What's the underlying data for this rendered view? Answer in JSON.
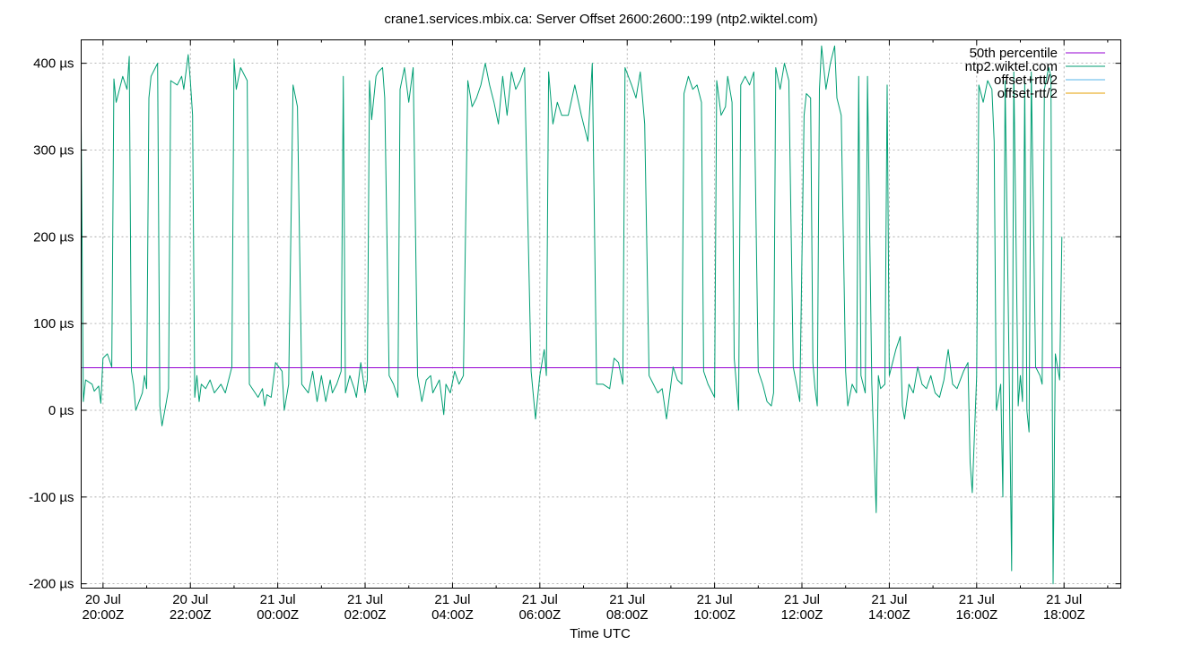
{
  "chart_data": {
    "type": "line",
    "title": "crane1.services.mbix.ca: Server Offset 2600:2600::199 (ntp2.wiktel.com)",
    "xlabel": "Time UTC",
    "ylabel": "",
    "y_unit": "µs",
    "ylim": [
      -205,
      427
    ],
    "xlim_hours": [
      19.5,
      43.3
    ],
    "grid": true,
    "legend_position": "top-right",
    "y_ticks": [
      -200,
      -100,
      0,
      100,
      200,
      300,
      400
    ],
    "y_tick_labels": [
      "-200 µs",
      "-100 µs",
      "0 µs",
      "100 µs",
      "200 µs",
      "300 µs",
      "400 µs"
    ],
    "x_ticks": [
      {
        "hour": 20,
        "date": "20 Jul",
        "time": "20:00Z"
      },
      {
        "hour": 22,
        "date": "20 Jul",
        "time": "22:00Z"
      },
      {
        "hour": 24,
        "date": "21 Jul",
        "time": "00:00Z"
      },
      {
        "hour": 26,
        "date": "21 Jul",
        "time": "02:00Z"
      },
      {
        "hour": 28,
        "date": "21 Jul",
        "time": "04:00Z"
      },
      {
        "hour": 30,
        "date": "21 Jul",
        "time": "06:00Z"
      },
      {
        "hour": 32,
        "date": "21 Jul",
        "time": "08:00Z"
      },
      {
        "hour": 34,
        "date": "21 Jul",
        "time": "10:00Z"
      },
      {
        "hour": 36,
        "date": "21 Jul",
        "time": "12:00Z"
      },
      {
        "hour": 38,
        "date": "21 Jul",
        "time": "14:00Z"
      },
      {
        "hour": 40,
        "date": "21 Jul",
        "time": "16:00Z"
      },
      {
        "hour": 42,
        "date": "21 Jul",
        "time": "18:00Z"
      }
    ],
    "series": [
      {
        "name": "50th percentile",
        "color": "#9400d3",
        "constant_y": 49
      },
      {
        "name": "ntp2.wiktel.com",
        "color": "#009e73",
        "points": [
          [
            19.5,
            330
          ],
          [
            19.55,
            10
          ],
          [
            19.6,
            35
          ],
          [
            19.75,
            30
          ],
          [
            19.8,
            22
          ],
          [
            19.9,
            28
          ],
          [
            19.95,
            8
          ],
          [
            20.0,
            60
          ],
          [
            20.1,
            65
          ],
          [
            20.2,
            50
          ],
          [
            20.25,
            382
          ],
          [
            20.3,
            355
          ],
          [
            20.45,
            385
          ],
          [
            20.55,
            370
          ],
          [
            20.6,
            408
          ],
          [
            20.65,
            45
          ],
          [
            20.7,
            30
          ],
          [
            20.75,
            0
          ],
          [
            20.9,
            20
          ],
          [
            20.95,
            40
          ],
          [
            21.0,
            25
          ],
          [
            21.05,
            360
          ],
          [
            21.1,
            385
          ],
          [
            21.25,
            400
          ],
          [
            21.3,
            5
          ],
          [
            21.35,
            -18
          ],
          [
            21.45,
            10
          ],
          [
            21.5,
            25
          ],
          [
            21.55,
            380
          ],
          [
            21.7,
            375
          ],
          [
            21.8,
            385
          ],
          [
            21.85,
            370
          ],
          [
            21.95,
            410
          ],
          [
            22.0,
            380
          ],
          [
            22.05,
            340
          ],
          [
            22.1,
            15
          ],
          [
            22.15,
            40
          ],
          [
            22.2,
            10
          ],
          [
            22.25,
            30
          ],
          [
            22.35,
            25
          ],
          [
            22.45,
            35
          ],
          [
            22.55,
            20
          ],
          [
            22.7,
            30
          ],
          [
            22.8,
            20
          ],
          [
            22.9,
            40
          ],
          [
            22.95,
            50
          ],
          [
            23.0,
            405
          ],
          [
            23.05,
            370
          ],
          [
            23.15,
            395
          ],
          [
            23.3,
            380
          ],
          [
            23.35,
            30
          ],
          [
            23.55,
            15
          ],
          [
            23.65,
            25
          ],
          [
            23.7,
            5
          ],
          [
            23.75,
            18
          ],
          [
            23.85,
            15
          ],
          [
            23.95,
            55
          ],
          [
            24.1,
            45
          ],
          [
            24.15,
            0
          ],
          [
            24.25,
            30
          ],
          [
            24.35,
            375
          ],
          [
            24.45,
            350
          ],
          [
            24.55,
            30
          ],
          [
            24.7,
            20
          ],
          [
            24.8,
            45
          ],
          [
            24.9,
            10
          ],
          [
            25.0,
            40
          ],
          [
            25.1,
            10
          ],
          [
            25.2,
            35
          ],
          [
            25.25,
            20
          ],
          [
            25.35,
            30
          ],
          [
            25.45,
            45
          ],
          [
            25.5,
            385
          ],
          [
            25.55,
            20
          ],
          [
            25.65,
            40
          ],
          [
            25.75,
            25
          ],
          [
            25.8,
            15
          ],
          [
            25.9,
            55
          ],
          [
            26.0,
            20
          ],
          [
            26.05,
            35
          ],
          [
            26.1,
            380
          ],
          [
            26.15,
            335
          ],
          [
            26.25,
            385
          ],
          [
            26.3,
            390
          ],
          [
            26.4,
            395
          ],
          [
            26.45,
            360
          ],
          [
            26.55,
            40
          ],
          [
            26.65,
            30
          ],
          [
            26.75,
            15
          ],
          [
            26.8,
            370
          ],
          [
            26.9,
            395
          ],
          [
            27.0,
            355
          ],
          [
            27.1,
            395
          ],
          [
            27.2,
            40
          ],
          [
            27.3,
            10
          ],
          [
            27.4,
            35
          ],
          [
            27.5,
            40
          ],
          [
            27.55,
            20
          ],
          [
            27.7,
            35
          ],
          [
            27.8,
            -5
          ],
          [
            27.85,
            30
          ],
          [
            27.95,
            20
          ],
          [
            28.05,
            45
          ],
          [
            28.15,
            30
          ],
          [
            28.25,
            40
          ],
          [
            28.35,
            380
          ],
          [
            28.45,
            350
          ],
          [
            28.55,
            360
          ],
          [
            28.65,
            375
          ],
          [
            28.75,
            400
          ],
          [
            28.85,
            375
          ],
          [
            28.95,
            355
          ],
          [
            29.05,
            330
          ],
          [
            29.15,
            385
          ],
          [
            29.25,
            340
          ],
          [
            29.35,
            390
          ],
          [
            29.45,
            370
          ],
          [
            29.55,
            380
          ],
          [
            29.65,
            395
          ],
          [
            29.8,
            45
          ],
          [
            29.9,
            -10
          ],
          [
            30.0,
            40
          ],
          [
            30.1,
            70
          ],
          [
            30.15,
            40
          ],
          [
            30.2,
            390
          ],
          [
            30.3,
            330
          ],
          [
            30.4,
            355
          ],
          [
            30.5,
            340
          ],
          [
            30.65,
            340
          ],
          [
            30.8,
            375
          ],
          [
            30.95,
            340
          ],
          [
            31.1,
            310
          ],
          [
            31.2,
            400
          ],
          [
            31.3,
            30
          ],
          [
            31.45,
            30
          ],
          [
            31.6,
            25
          ],
          [
            31.7,
            60
          ],
          [
            31.8,
            55
          ],
          [
            31.9,
            30
          ],
          [
            31.95,
            395
          ],
          [
            32.1,
            375
          ],
          [
            32.2,
            360
          ],
          [
            32.3,
            390
          ],
          [
            32.4,
            330
          ],
          [
            32.5,
            40
          ],
          [
            32.7,
            20
          ],
          [
            32.8,
            25
          ],
          [
            32.9,
            -10
          ],
          [
            33.0,
            30
          ],
          [
            33.05,
            50
          ],
          [
            33.15,
            35
          ],
          [
            33.25,
            30
          ],
          [
            33.3,
            365
          ],
          [
            33.4,
            385
          ],
          [
            33.5,
            370
          ],
          [
            33.6,
            375
          ],
          [
            33.7,
            355
          ],
          [
            33.75,
            45
          ],
          [
            33.85,
            30
          ],
          [
            34.0,
            15
          ],
          [
            34.05,
            380
          ],
          [
            34.15,
            340
          ],
          [
            34.25,
            350
          ],
          [
            34.3,
            385
          ],
          [
            34.4,
            355
          ],
          [
            34.45,
            60
          ],
          [
            34.55,
            0
          ],
          [
            34.6,
            375
          ],
          [
            34.7,
            385
          ],
          [
            34.8,
            375
          ],
          [
            34.9,
            390
          ],
          [
            35.0,
            45
          ],
          [
            35.1,
            30
          ],
          [
            35.2,
            10
          ],
          [
            35.3,
            5
          ],
          [
            35.35,
            20
          ],
          [
            35.4,
            395
          ],
          [
            35.5,
            370
          ],
          [
            35.6,
            400
          ],
          [
            35.7,
            380
          ],
          [
            35.8,
            50
          ],
          [
            35.95,
            10
          ],
          [
            36.05,
            340
          ],
          [
            36.1,
            365
          ],
          [
            36.2,
            360
          ],
          [
            36.25,
            55
          ],
          [
            36.3,
            25
          ],
          [
            36.35,
            5
          ],
          [
            36.4,
            370
          ],
          [
            36.45,
            420
          ],
          [
            36.55,
            370
          ],
          [
            36.65,
            400
          ],
          [
            36.75,
            420
          ],
          [
            36.8,
            360
          ],
          [
            36.9,
            340
          ],
          [
            37.0,
            45
          ],
          [
            37.05,
            5
          ],
          [
            37.15,
            30
          ],
          [
            37.25,
            20
          ],
          [
            37.3,
            385
          ],
          [
            37.35,
            40
          ],
          [
            37.45,
            20
          ],
          [
            37.5,
            385
          ],
          [
            37.6,
            30
          ],
          [
            37.7,
            -118
          ],
          [
            37.75,
            40
          ],
          [
            37.8,
            25
          ],
          [
            37.9,
            30
          ],
          [
            37.95,
            375
          ],
          [
            38.0,
            40
          ],
          [
            38.15,
            70
          ],
          [
            38.25,
            85
          ],
          [
            38.3,
            5
          ],
          [
            38.35,
            -10
          ],
          [
            38.45,
            30
          ],
          [
            38.55,
            20
          ],
          [
            38.65,
            50
          ],
          [
            38.75,
            30
          ],
          [
            38.85,
            25
          ],
          [
            38.95,
            40
          ],
          [
            39.05,
            20
          ],
          [
            39.15,
            15
          ],
          [
            39.25,
            35
          ],
          [
            39.35,
            70
          ],
          [
            39.45,
            30
          ],
          [
            39.55,
            25
          ],
          [
            39.7,
            45
          ],
          [
            39.8,
            55
          ],
          [
            39.85,
            -60
          ],
          [
            39.9,
            -95
          ],
          [
            40.0,
            40
          ],
          [
            40.05,
            375
          ],
          [
            40.15,
            355
          ],
          [
            40.25,
            380
          ],
          [
            40.35,
            370
          ],
          [
            40.4,
            310
          ],
          [
            40.45,
            0
          ],
          [
            40.55,
            30
          ],
          [
            40.6,
            -100
          ],
          [
            40.65,
            380
          ],
          [
            40.75,
            25
          ],
          [
            40.8,
            -185
          ],
          [
            40.85,
            390
          ],
          [
            40.95,
            5
          ],
          [
            41.0,
            40
          ],
          [
            41.05,
            10
          ],
          [
            41.1,
            380
          ],
          [
            41.15,
            0
          ],
          [
            41.2,
            -25
          ],
          [
            41.25,
            390
          ],
          [
            41.35,
            50
          ],
          [
            41.45,
            40
          ],
          [
            41.5,
            30
          ],
          [
            41.55,
            370
          ],
          [
            41.65,
            395
          ],
          [
            41.7,
            385
          ],
          [
            41.75,
            -200
          ],
          [
            41.8,
            65
          ],
          [
            41.85,
            50
          ],
          [
            41.9,
            35
          ],
          [
            41.95,
            200
          ]
        ]
      },
      {
        "name": "offset+rtt/2",
        "color": "#56b4e9",
        "points": []
      },
      {
        "name": "offset-rtt/2",
        "color": "#e69f00",
        "points": []
      }
    ]
  }
}
